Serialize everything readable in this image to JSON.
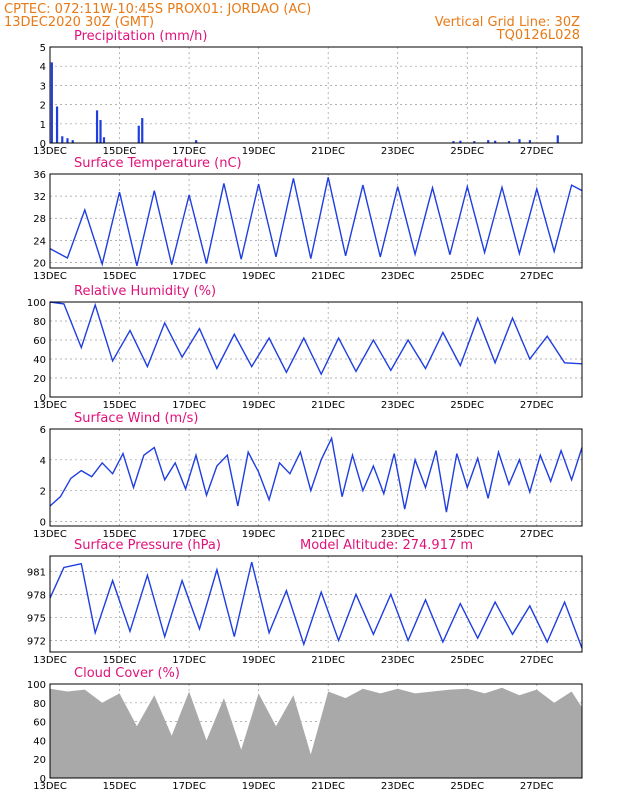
{
  "header": {
    "line1": "CPTEC:   072:11W-10:45S   PROX01: JORDAO (AC)",
    "line2": "13DEC2020 30Z (GMT)",
    "grid_note": "Vertical Grid Line: 30Z",
    "code": "TQ0126L028"
  },
  "colors": {
    "header": "#e87a16",
    "title": "#e0127a",
    "line": "#1f3ee0",
    "cloud": "#a9a9a9",
    "grid": "#9a9a9a"
  },
  "x_axis": {
    "ticks": [
      "13DEC",
      "15DEC",
      "17DEC",
      "19DEC",
      "21DEC",
      "23DEC",
      "25DEC",
      "27DEC"
    ],
    "range_days": [
      13,
      28.3
    ]
  },
  "chart_data": [
    {
      "type": "bar",
      "title": "Precipitation (mm/h)",
      "ylim": [
        0,
        5
      ],
      "yticks": [
        "0",
        "1",
        "2",
        "3",
        "4",
        "5"
      ],
      "grid": true,
      "x": [
        13.05,
        13.2,
        13.35,
        13.5,
        13.65,
        14.35,
        14.45,
        14.55,
        15.55,
        15.65,
        17.2,
        24.6,
        24.8,
        25.2,
        25.6,
        25.8,
        26.2,
        26.5,
        26.8,
        27.6
      ],
      "values": [
        4.2,
        1.9,
        0.35,
        0.25,
        0.15,
        1.7,
        1.2,
        0.3,
        0.9,
        1.3,
        0.15,
        0.1,
        0.12,
        0.1,
        0.15,
        0.12,
        0.1,
        0.2,
        0.15,
        0.4
      ]
    },
    {
      "type": "line",
      "title": "Surface Temperature (nC)",
      "ylim": [
        19,
        36
      ],
      "yticks": [
        "20",
        "24",
        "28",
        "32",
        "36"
      ],
      "grid": true,
      "x": [
        13.0,
        13.5,
        14.0,
        14.5,
        15.0,
        15.5,
        16.0,
        16.5,
        17.0,
        17.5,
        18.0,
        18.5,
        19.0,
        19.5,
        20.0,
        20.5,
        21.0,
        21.5,
        22.0,
        22.5,
        23.0,
        23.5,
        24.0,
        24.5,
        25.0,
        25.5,
        26.0,
        26.5,
        27.0,
        27.5,
        28.0,
        28.3
      ],
      "values": [
        22.5,
        20.8,
        29.5,
        19.7,
        32.7,
        19.4,
        33.0,
        19.6,
        32.2,
        19.8,
        34.3,
        20.6,
        34.2,
        21.0,
        35.2,
        20.7,
        35.4,
        21.2,
        34.0,
        21.0,
        33.7,
        21.5,
        33.5,
        21.4,
        33.7,
        21.8,
        33.6,
        21.6,
        33.3,
        22.0,
        34.0,
        33.0
      ]
    },
    {
      "type": "line",
      "title": "Relative Humidity (%)",
      "ylim": [
        0,
        100
      ],
      "yticks": [
        "0",
        "20",
        "40",
        "60",
        "80",
        "100"
      ],
      "grid": true,
      "x": [
        13.0,
        13.4,
        13.9,
        14.3,
        14.8,
        15.3,
        15.8,
        16.3,
        16.8,
        17.3,
        17.8,
        18.3,
        18.8,
        19.3,
        19.8,
        20.3,
        20.8,
        21.3,
        21.8,
        22.3,
        22.8,
        23.3,
        23.8,
        24.3,
        24.8,
        25.3,
        25.8,
        26.3,
        26.8,
        27.3,
        27.8,
        28.3
      ],
      "values": [
        100,
        98,
        52,
        97,
        38,
        70,
        32,
        78,
        42,
        72,
        30,
        66,
        32,
        62,
        26,
        62,
        24,
        62,
        27,
        60,
        28,
        60,
        30,
        68,
        33,
        83,
        36,
        83,
        40,
        64,
        36,
        35
      ]
    },
    {
      "type": "line",
      "title": "Surface Wind (m/s)",
      "ylim": [
        -0.3,
        6
      ],
      "yticks": [
        "0",
        "2",
        "4",
        "6"
      ],
      "grid": true,
      "x": [
        13.0,
        13.3,
        13.6,
        13.9,
        14.2,
        14.5,
        14.8,
        15.1,
        15.4,
        15.7,
        16.0,
        16.3,
        16.6,
        16.9,
        17.2,
        17.5,
        17.8,
        18.1,
        18.4,
        18.7,
        19.0,
        19.3,
        19.6,
        19.9,
        20.2,
        20.5,
        20.8,
        21.1,
        21.4,
        21.7,
        22.0,
        22.3,
        22.6,
        22.9,
        23.2,
        23.5,
        23.8,
        24.1,
        24.4,
        24.7,
        25.0,
        25.3,
        25.6,
        25.9,
        26.2,
        26.5,
        26.8,
        27.1,
        27.4,
        27.7,
        28.0,
        28.3
      ],
      "values": [
        1.0,
        1.6,
        2.8,
        3.3,
        2.9,
        3.8,
        3.1,
        4.4,
        2.2,
        4.3,
        4.8,
        2.7,
        3.8,
        2.1,
        4.3,
        1.7,
        3.6,
        4.3,
        1.0,
        4.5,
        3.2,
        1.4,
        3.8,
        3.1,
        4.5,
        2.0,
        4.0,
        5.4,
        1.6,
        4.3,
        2.0,
        3.6,
        1.8,
        4.4,
        0.8,
        4.0,
        2.2,
        4.6,
        0.6,
        4.4,
        2.2,
        4.1,
        1.5,
        4.5,
        2.4,
        4.0,
        1.9,
        4.3,
        2.6,
        4.6,
        2.7,
        4.8
      ]
    },
    {
      "type": "line",
      "title": "Surface Pressure (hPa)",
      "subtitle": "Model Altitude: 274.917 m",
      "ylim": [
        970.5,
        983
      ],
      "yticks": [
        "972",
        "975",
        "978",
        "981"
      ],
      "grid": true,
      "x": [
        13.0,
        13.4,
        13.9,
        14.3,
        14.8,
        15.3,
        15.8,
        16.3,
        16.8,
        17.3,
        17.8,
        18.3,
        18.8,
        19.3,
        19.8,
        20.3,
        20.8,
        21.3,
        21.8,
        22.3,
        22.8,
        23.3,
        23.8,
        24.3,
        24.8,
        25.3,
        25.8,
        26.3,
        26.8,
        27.3,
        27.8,
        28.3
      ],
      "values": [
        977.5,
        981.5,
        982.0,
        973.0,
        979.8,
        973.2,
        980.5,
        972.5,
        979.8,
        973.5,
        981.2,
        972.5,
        982.2,
        973.0,
        978.5,
        971.5,
        978.3,
        972.0,
        978.0,
        972.8,
        978.0,
        972.0,
        977.3,
        971.8,
        976.8,
        972.3,
        977.0,
        972.8,
        976.5,
        971.8,
        977.0,
        971.0
      ]
    },
    {
      "type": "area",
      "title": "Cloud Cover (%)",
      "ylim": [
        0,
        100
      ],
      "yticks": [
        "0",
        "20",
        "40",
        "60",
        "80",
        "100"
      ],
      "grid": true,
      "x": [
        13.0,
        13.5,
        14.0,
        14.5,
        15.0,
        15.5,
        16.0,
        16.5,
        17.0,
        17.5,
        18.0,
        18.5,
        19.0,
        19.5,
        20.0,
        20.5,
        21.0,
        21.5,
        22.0,
        22.5,
        23.0,
        23.5,
        24.0,
        24.5,
        25.0,
        25.5,
        26.0,
        26.5,
        27.0,
        27.5,
        28.0,
        28.3
      ],
      "values": [
        95,
        92,
        94,
        80,
        90,
        55,
        88,
        45,
        92,
        40,
        85,
        30,
        90,
        55,
        88,
        25,
        92,
        85,
        95,
        90,
        95,
        90,
        92,
        94,
        95,
        90,
        96,
        88,
        94,
        80,
        92,
        75
      ]
    }
  ]
}
